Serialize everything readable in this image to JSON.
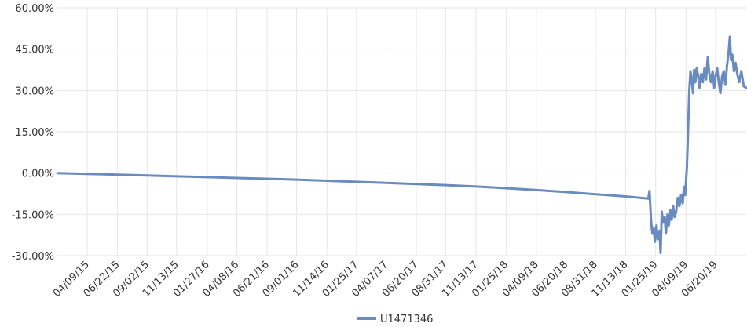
{
  "chart_data": {
    "type": "line",
    "title": "",
    "xlabel": "",
    "ylabel": "",
    "ylim": [
      -30,
      60
    ],
    "y_ticks": [
      "-30.00%",
      "-15.00%",
      "0.00%",
      "15.00%",
      "30.00%",
      "45.00%",
      "60.00%"
    ],
    "y_tick_values": [
      -30,
      -15,
      0,
      15,
      30,
      45,
      60
    ],
    "x_ticks": [
      "04/09/15",
      "06/22/15",
      "09/02/15",
      "11/13/15",
      "01/27/16",
      "04/08/16",
      "06/21/16",
      "09/01/16",
      "11/14/16",
      "01/25/17",
      "04/07/17",
      "06/20/17",
      "08/31/17",
      "11/13/17",
      "01/25/18",
      "04/09/18",
      "06/20/18",
      "08/31/18",
      "11/13/18",
      "01/25/19",
      "04/09/19",
      "06/20/19"
    ],
    "xlim": [
      "2015-01-26",
      "2019-09-03"
    ],
    "grid": true,
    "legend_position": "bottom-center",
    "series": [
      {
        "name": "U1471346",
        "color": "#6a8bbf",
        "points": [
          [
            "2015-01-26",
            0.0
          ],
          [
            "2015-04-09",
            -0.3
          ],
          [
            "2015-06-22",
            -0.6
          ],
          [
            "2015-09-02",
            -0.9
          ],
          [
            "2015-11-13",
            -1.2
          ],
          [
            "2016-01-27",
            -1.5
          ],
          [
            "2016-04-08",
            -1.8
          ],
          [
            "2016-06-21",
            -2.1
          ],
          [
            "2016-09-01",
            -2.4
          ],
          [
            "2016-11-14",
            -2.8
          ],
          [
            "2017-01-25",
            -3.2
          ],
          [
            "2017-04-07",
            -3.6
          ],
          [
            "2017-06-20",
            -4.0
          ],
          [
            "2017-08-31",
            -4.4
          ],
          [
            "2017-11-13",
            -4.9
          ],
          [
            "2018-01-25",
            -5.5
          ],
          [
            "2018-04-09",
            -6.2
          ],
          [
            "2018-06-20",
            -6.9
          ],
          [
            "2018-08-31",
            -7.7
          ],
          [
            "2018-11-13",
            -8.5
          ],
          [
            "2019-01-07",
            -9.3
          ],
          [
            "2019-01-10",
            -6.5
          ],
          [
            "2019-01-14",
            -18.0
          ],
          [
            "2019-01-17",
            -22.0
          ],
          [
            "2019-01-20",
            -20.0
          ],
          [
            "2019-01-23",
            -25.0
          ],
          [
            "2019-01-27",
            -19.0
          ],
          [
            "2019-01-30",
            -24.0
          ],
          [
            "2019-02-03",
            -21.0
          ],
          [
            "2019-02-06",
            -29.0
          ],
          [
            "2019-02-09",
            -14.0
          ],
          [
            "2019-02-12",
            -18.0
          ],
          [
            "2019-02-16",
            -16.0
          ],
          [
            "2019-02-19",
            -22.0
          ],
          [
            "2019-02-23",
            -15.0
          ],
          [
            "2019-02-26",
            -19.0
          ],
          [
            "2019-03-02",
            -13.5
          ],
          [
            "2019-03-05",
            -17.0
          ],
          [
            "2019-03-09",
            -12.0
          ],
          [
            "2019-03-12",
            -16.0
          ],
          [
            "2019-03-16",
            -14.0
          ],
          [
            "2019-03-20",
            -9.0
          ],
          [
            "2019-03-24",
            -12.0
          ],
          [
            "2019-03-28",
            -8.0
          ],
          [
            "2019-04-01",
            -11.0
          ],
          [
            "2019-04-04",
            -5.0
          ],
          [
            "2019-04-07",
            -8.0
          ],
          [
            "2019-04-09",
            -3.0
          ],
          [
            "2019-04-11",
            2.0
          ],
          [
            "2019-04-13",
            10.0
          ],
          [
            "2019-04-15",
            20.0
          ],
          [
            "2019-04-17",
            30.0
          ],
          [
            "2019-04-20",
            37.0
          ],
          [
            "2019-04-23",
            34.0
          ],
          [
            "2019-04-26",
            29.0
          ],
          [
            "2019-04-29",
            37.5
          ],
          [
            "2019-05-02",
            33.0
          ],
          [
            "2019-05-05",
            38.0
          ],
          [
            "2019-05-09",
            35.0
          ],
          [
            "2019-05-12",
            31.0
          ],
          [
            "2019-05-16",
            36.0
          ],
          [
            "2019-05-20",
            33.0
          ],
          [
            "2019-05-24",
            38.0
          ],
          [
            "2019-05-28",
            34.0
          ],
          [
            "2019-06-01",
            42.0
          ],
          [
            "2019-06-05",
            36.0
          ],
          [
            "2019-06-09",
            33.0
          ],
          [
            "2019-06-13",
            37.0
          ],
          [
            "2019-06-17",
            31.0
          ],
          [
            "2019-06-20",
            35.0
          ],
          [
            "2019-06-24",
            38.0
          ],
          [
            "2019-06-28",
            33.0
          ],
          [
            "2019-07-02",
            29.0
          ],
          [
            "2019-07-06",
            35.0
          ],
          [
            "2019-07-10",
            37.0
          ],
          [
            "2019-07-14",
            32.0
          ],
          [
            "2019-07-18",
            39.0
          ],
          [
            "2019-07-22",
            44.0
          ],
          [
            "2019-07-25",
            49.5
          ],
          [
            "2019-07-28",
            41.0
          ],
          [
            "2019-07-31",
            43.0
          ],
          [
            "2019-08-04",
            37.0
          ],
          [
            "2019-08-08",
            40.0
          ],
          [
            "2019-08-12",
            36.0
          ],
          [
            "2019-08-17",
            33.0
          ],
          [
            "2019-08-22",
            37.0
          ],
          [
            "2019-08-28",
            31.5
          ],
          [
            "2019-09-03",
            31.0
          ]
        ]
      }
    ]
  }
}
